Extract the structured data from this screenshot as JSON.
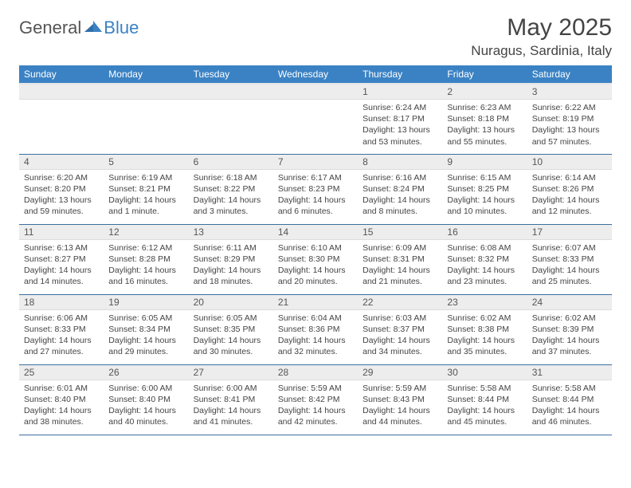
{
  "logo": {
    "general": "General",
    "blue": "Blue"
  },
  "title": "May 2025",
  "location": "Nuragus, Sardinia, Italy",
  "colors": {
    "header_bg": "#3b82c4",
    "header_fg": "#ffffff",
    "daynum_bg": "#ededed",
    "row_border": "#3b6fa0",
    "text": "#444444"
  },
  "weekdays": [
    "Sunday",
    "Monday",
    "Tuesday",
    "Wednesday",
    "Thursday",
    "Friday",
    "Saturday"
  ],
  "weeks": [
    [
      {
        "n": "",
        "sr": "",
        "ss": "",
        "dl": ""
      },
      {
        "n": "",
        "sr": "",
        "ss": "",
        "dl": ""
      },
      {
        "n": "",
        "sr": "",
        "ss": "",
        "dl": ""
      },
      {
        "n": "",
        "sr": "",
        "ss": "",
        "dl": ""
      },
      {
        "n": "1",
        "sr": "Sunrise: 6:24 AM",
        "ss": "Sunset: 8:17 PM",
        "dl": "Daylight: 13 hours and 53 minutes."
      },
      {
        "n": "2",
        "sr": "Sunrise: 6:23 AM",
        "ss": "Sunset: 8:18 PM",
        "dl": "Daylight: 13 hours and 55 minutes."
      },
      {
        "n": "3",
        "sr": "Sunrise: 6:22 AM",
        "ss": "Sunset: 8:19 PM",
        "dl": "Daylight: 13 hours and 57 minutes."
      }
    ],
    [
      {
        "n": "4",
        "sr": "Sunrise: 6:20 AM",
        "ss": "Sunset: 8:20 PM",
        "dl": "Daylight: 13 hours and 59 minutes."
      },
      {
        "n": "5",
        "sr": "Sunrise: 6:19 AM",
        "ss": "Sunset: 8:21 PM",
        "dl": "Daylight: 14 hours and 1 minute."
      },
      {
        "n": "6",
        "sr": "Sunrise: 6:18 AM",
        "ss": "Sunset: 8:22 PM",
        "dl": "Daylight: 14 hours and 3 minutes."
      },
      {
        "n": "7",
        "sr": "Sunrise: 6:17 AM",
        "ss": "Sunset: 8:23 PM",
        "dl": "Daylight: 14 hours and 6 minutes."
      },
      {
        "n": "8",
        "sr": "Sunrise: 6:16 AM",
        "ss": "Sunset: 8:24 PM",
        "dl": "Daylight: 14 hours and 8 minutes."
      },
      {
        "n": "9",
        "sr": "Sunrise: 6:15 AM",
        "ss": "Sunset: 8:25 PM",
        "dl": "Daylight: 14 hours and 10 minutes."
      },
      {
        "n": "10",
        "sr": "Sunrise: 6:14 AM",
        "ss": "Sunset: 8:26 PM",
        "dl": "Daylight: 14 hours and 12 minutes."
      }
    ],
    [
      {
        "n": "11",
        "sr": "Sunrise: 6:13 AM",
        "ss": "Sunset: 8:27 PM",
        "dl": "Daylight: 14 hours and 14 minutes."
      },
      {
        "n": "12",
        "sr": "Sunrise: 6:12 AM",
        "ss": "Sunset: 8:28 PM",
        "dl": "Daylight: 14 hours and 16 minutes."
      },
      {
        "n": "13",
        "sr": "Sunrise: 6:11 AM",
        "ss": "Sunset: 8:29 PM",
        "dl": "Daylight: 14 hours and 18 minutes."
      },
      {
        "n": "14",
        "sr": "Sunrise: 6:10 AM",
        "ss": "Sunset: 8:30 PM",
        "dl": "Daylight: 14 hours and 20 minutes."
      },
      {
        "n": "15",
        "sr": "Sunrise: 6:09 AM",
        "ss": "Sunset: 8:31 PM",
        "dl": "Daylight: 14 hours and 21 minutes."
      },
      {
        "n": "16",
        "sr": "Sunrise: 6:08 AM",
        "ss": "Sunset: 8:32 PM",
        "dl": "Daylight: 14 hours and 23 minutes."
      },
      {
        "n": "17",
        "sr": "Sunrise: 6:07 AM",
        "ss": "Sunset: 8:33 PM",
        "dl": "Daylight: 14 hours and 25 minutes."
      }
    ],
    [
      {
        "n": "18",
        "sr": "Sunrise: 6:06 AM",
        "ss": "Sunset: 8:33 PM",
        "dl": "Daylight: 14 hours and 27 minutes."
      },
      {
        "n": "19",
        "sr": "Sunrise: 6:05 AM",
        "ss": "Sunset: 8:34 PM",
        "dl": "Daylight: 14 hours and 29 minutes."
      },
      {
        "n": "20",
        "sr": "Sunrise: 6:05 AM",
        "ss": "Sunset: 8:35 PM",
        "dl": "Daylight: 14 hours and 30 minutes."
      },
      {
        "n": "21",
        "sr": "Sunrise: 6:04 AM",
        "ss": "Sunset: 8:36 PM",
        "dl": "Daylight: 14 hours and 32 minutes."
      },
      {
        "n": "22",
        "sr": "Sunrise: 6:03 AM",
        "ss": "Sunset: 8:37 PM",
        "dl": "Daylight: 14 hours and 34 minutes."
      },
      {
        "n": "23",
        "sr": "Sunrise: 6:02 AM",
        "ss": "Sunset: 8:38 PM",
        "dl": "Daylight: 14 hours and 35 minutes."
      },
      {
        "n": "24",
        "sr": "Sunrise: 6:02 AM",
        "ss": "Sunset: 8:39 PM",
        "dl": "Daylight: 14 hours and 37 minutes."
      }
    ],
    [
      {
        "n": "25",
        "sr": "Sunrise: 6:01 AM",
        "ss": "Sunset: 8:40 PM",
        "dl": "Daylight: 14 hours and 38 minutes."
      },
      {
        "n": "26",
        "sr": "Sunrise: 6:00 AM",
        "ss": "Sunset: 8:40 PM",
        "dl": "Daylight: 14 hours and 40 minutes."
      },
      {
        "n": "27",
        "sr": "Sunrise: 6:00 AM",
        "ss": "Sunset: 8:41 PM",
        "dl": "Daylight: 14 hours and 41 minutes."
      },
      {
        "n": "28",
        "sr": "Sunrise: 5:59 AM",
        "ss": "Sunset: 8:42 PM",
        "dl": "Daylight: 14 hours and 42 minutes."
      },
      {
        "n": "29",
        "sr": "Sunrise: 5:59 AM",
        "ss": "Sunset: 8:43 PM",
        "dl": "Daylight: 14 hours and 44 minutes."
      },
      {
        "n": "30",
        "sr": "Sunrise: 5:58 AM",
        "ss": "Sunset: 8:44 PM",
        "dl": "Daylight: 14 hours and 45 minutes."
      },
      {
        "n": "31",
        "sr": "Sunrise: 5:58 AM",
        "ss": "Sunset: 8:44 PM",
        "dl": "Daylight: 14 hours and 46 minutes."
      }
    ]
  ]
}
